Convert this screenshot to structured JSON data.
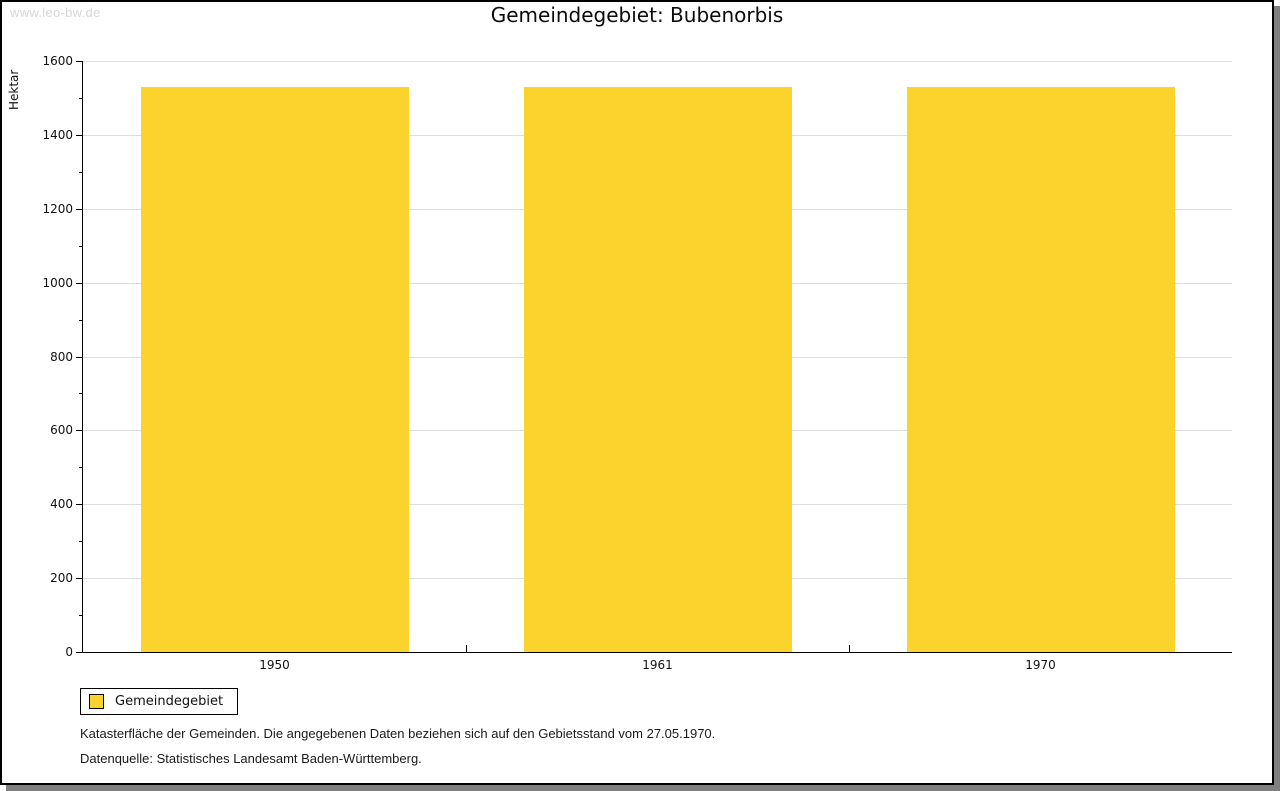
{
  "watermark": "www.leo-bw.de",
  "title": "Gemeindegebiet: Bubenorbis",
  "legend": {
    "label": "Gemeindegebiet",
    "swatch_color": "#FCD32D"
  },
  "notes": [
    "Katasterfläche der Gemeinden. Die angegebenen Daten beziehen sich auf den Gebietsstand vom 27.05.1970.",
    "Datenquelle: Statistisches Landesamt Baden-Württemberg."
  ],
  "chart_data": {
    "type": "bar",
    "title": "Gemeindegebiet: Bubenorbis",
    "xlabel": "",
    "ylabel": "Hektar",
    "categories": [
      "1950",
      "1961",
      "1970"
    ],
    "series": [
      {
        "name": "Gemeindegebiet",
        "color": "#FCD32D",
        "values": [
          1531,
          1531,
          1531
        ]
      }
    ],
    "ylim": [
      0,
      1600
    ],
    "ytick_step": 200,
    "yminor_step": 100,
    "grid": true,
    "gridline_color": "#DDDDDD",
    "legend_position": "bottom-left",
    "unit": "Hektar"
  }
}
